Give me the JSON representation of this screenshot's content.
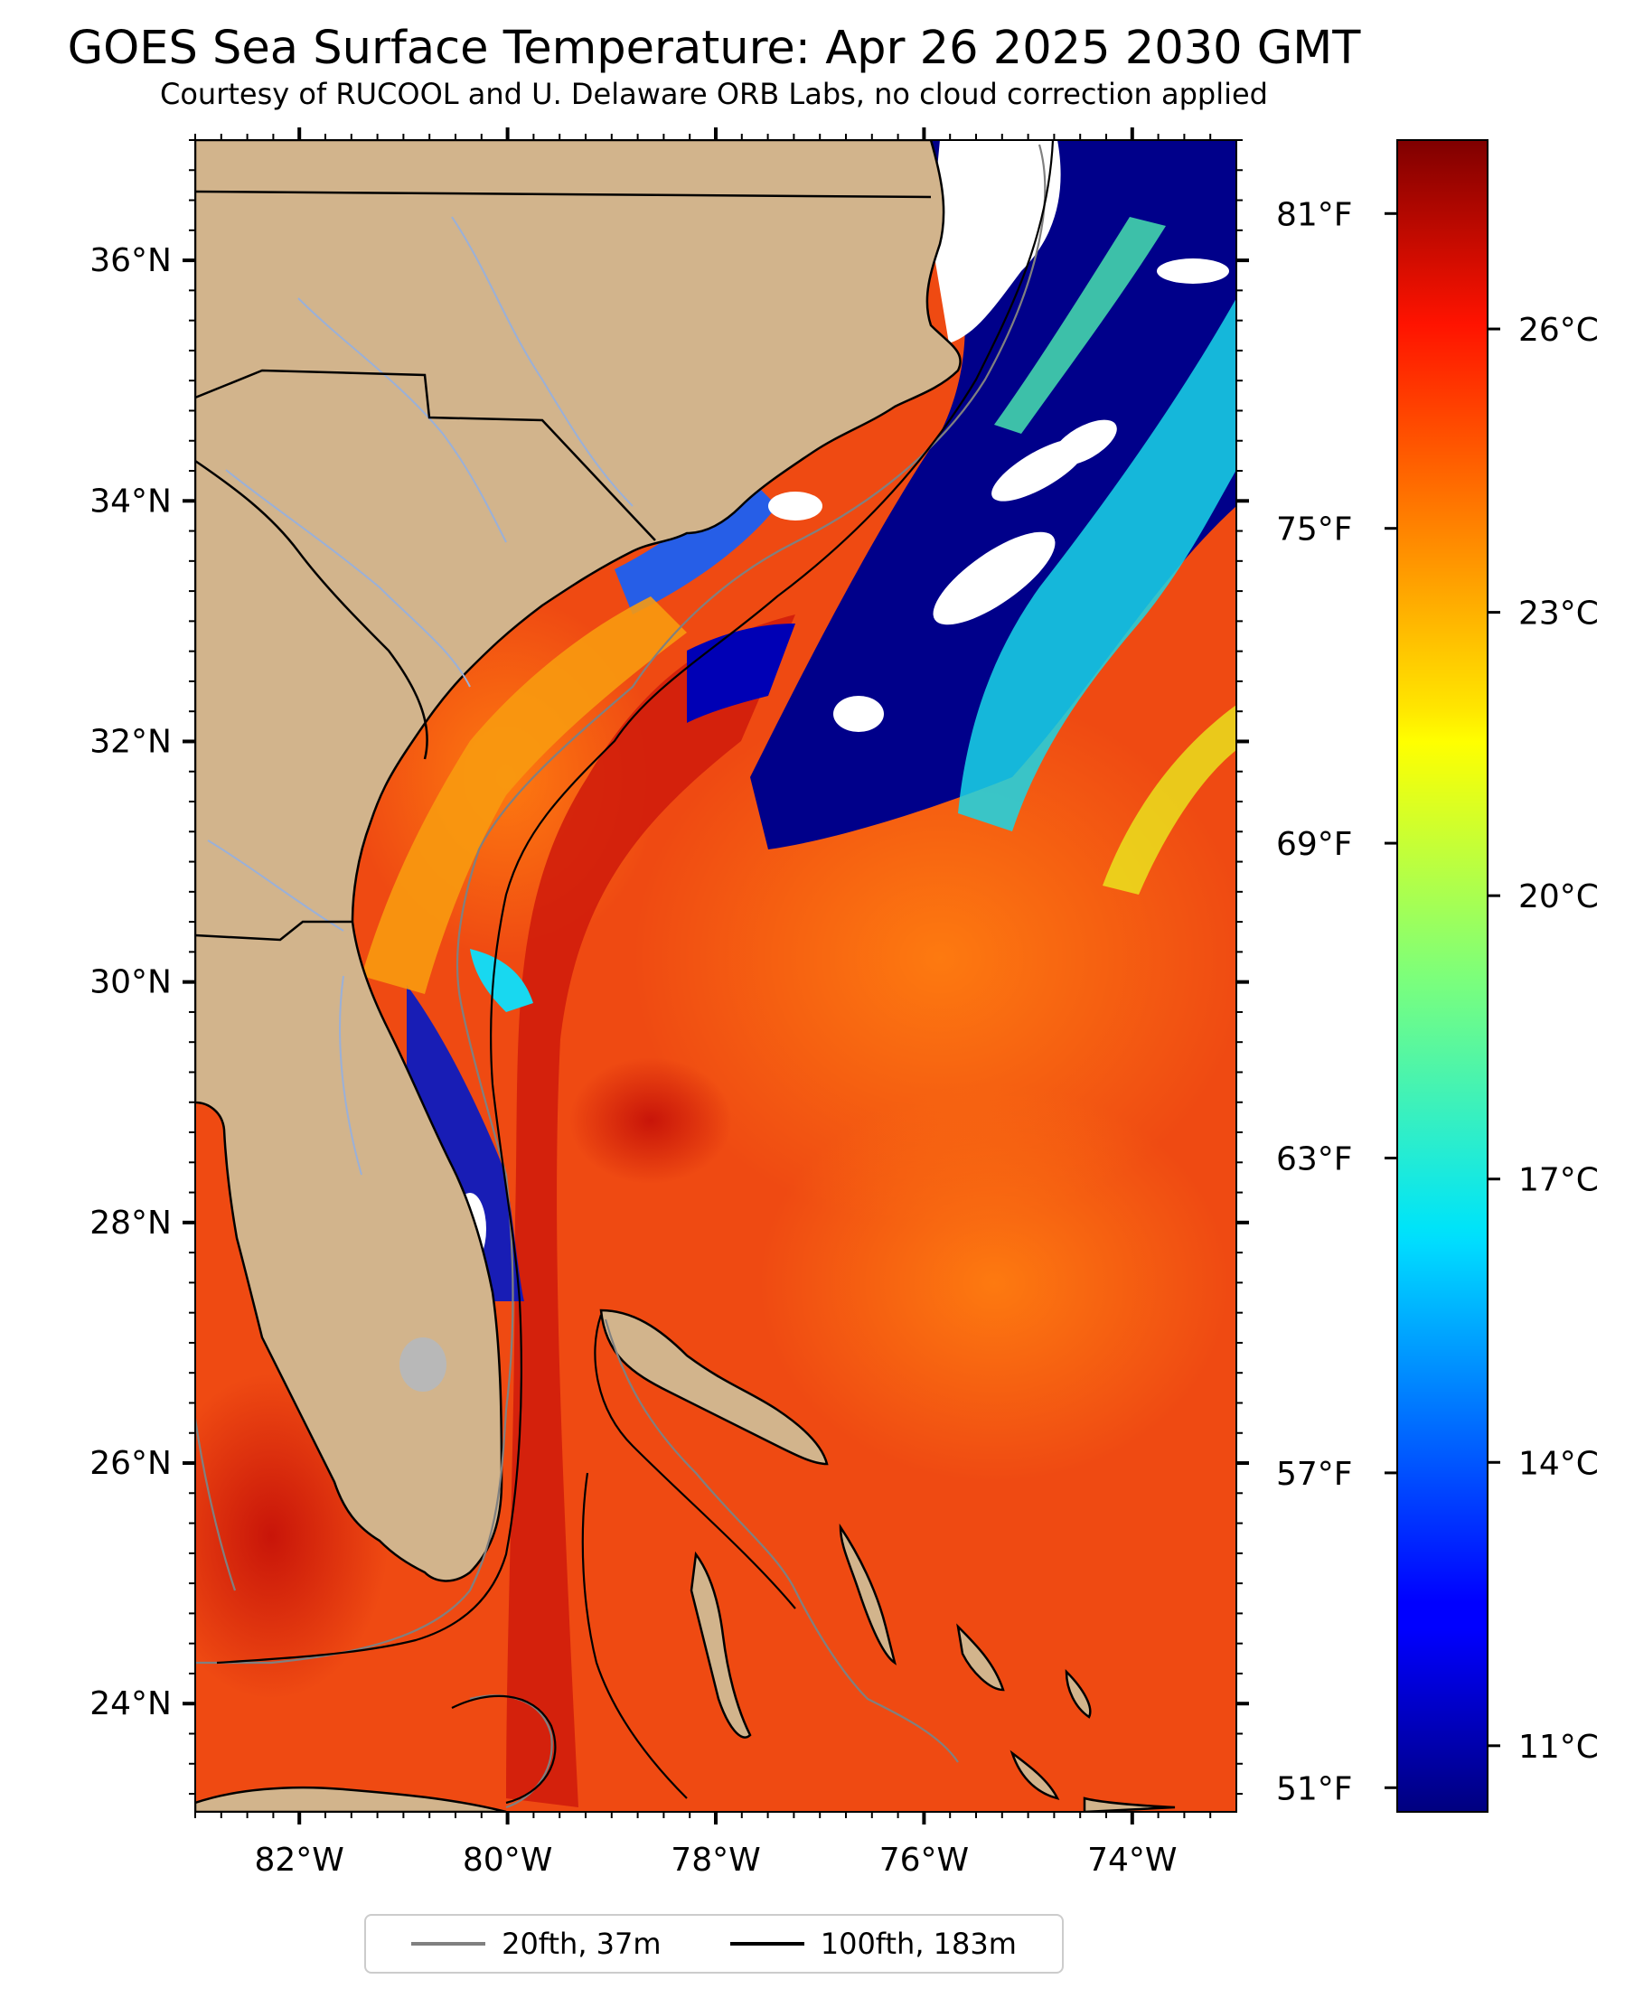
{
  "title": "GOES Sea Surface Temperature: Apr 26 2025 2030 GMT",
  "subtitle": "Courtesy of RUCOOL and U. Delaware ORB Labs, no cloud correction applied",
  "map": {
    "lon_range": [
      -83.0,
      -73.0
    ],
    "lat_range": [
      23.1,
      37.0
    ],
    "lon_ticks": [
      {
        "value": -82,
        "label": "82°W"
      },
      {
        "value": -80,
        "label": "80°W"
      },
      {
        "value": -78,
        "label": "78°W"
      },
      {
        "value": -76,
        "label": "76°W"
      },
      {
        "value": -74,
        "label": "74°W"
      }
    ],
    "lat_ticks": [
      {
        "value": 24,
        "label": "24°N"
      },
      {
        "value": 26,
        "label": "26°N"
      },
      {
        "value": 28,
        "label": "28°N"
      },
      {
        "value": 30,
        "label": "30°N"
      },
      {
        "value": 32,
        "label": "32°N"
      },
      {
        "value": 34,
        "label": "34°N"
      },
      {
        "value": 36,
        "label": "36°N"
      }
    ],
    "colors": {
      "land": "#d2b48c",
      "ocean_warm": "#ef3a10",
      "gulf_stream": "#d4160c",
      "coastline": "#000000",
      "rivers": "#9ab0d8"
    }
  },
  "colorbar": {
    "min_c": 10.3,
    "max_c": 28.0,
    "colormap": "jet",
    "celsius_ticks": [
      {
        "value": 11,
        "label": "11°C"
      },
      {
        "value": 14,
        "label": "14°C"
      },
      {
        "value": 17,
        "label": "17°C"
      },
      {
        "value": 20,
        "label": "20°C"
      },
      {
        "value": 23,
        "label": "23°C"
      },
      {
        "value": 26,
        "label": "26°C"
      }
    ],
    "fahrenheit_ticks": [
      {
        "value": 51,
        "label": "51°F"
      },
      {
        "value": 57,
        "label": "57°F"
      },
      {
        "value": 63,
        "label": "63°F"
      },
      {
        "value": 69,
        "label": "69°F"
      },
      {
        "value": 75,
        "label": "75°F"
      },
      {
        "value": 81,
        "label": "81°F"
      }
    ]
  },
  "legend": [
    {
      "label": "20fth, 37m",
      "color": "#808080"
    },
    {
      "label": "100fth, 183m",
      "color": "#000000"
    }
  ]
}
